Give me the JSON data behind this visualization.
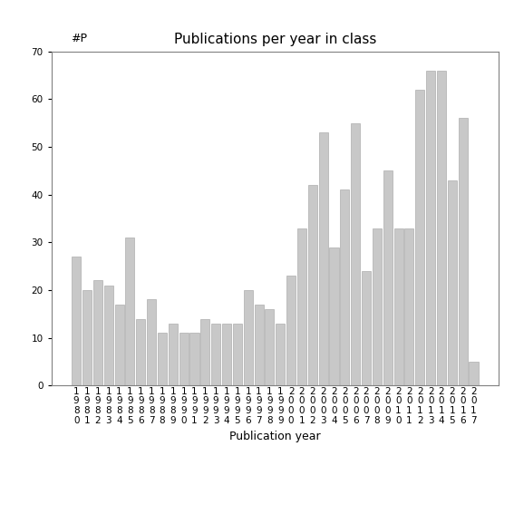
{
  "title": "Publications per year in class",
  "xlabel": "Publication year",
  "ylabel": "#P",
  "years": [
    1980,
    1981,
    1982,
    1983,
    1984,
    1985,
    1986,
    1987,
    1988,
    1989,
    1990,
    1991,
    1992,
    1993,
    1994,
    1995,
    1996,
    1997,
    1998,
    1999,
    2000,
    2001,
    2002,
    2003,
    2004,
    2005,
    2006,
    2007,
    2008,
    2009,
    2010,
    2011,
    2012,
    2013,
    2014,
    2015,
    2016,
    2017
  ],
  "values": [
    27,
    20,
    22,
    21,
    17,
    31,
    14,
    18,
    11,
    13,
    11,
    11,
    14,
    13,
    13,
    13,
    20,
    17,
    16,
    13,
    23,
    33,
    42,
    53,
    29,
    41,
    55,
    24,
    33,
    45,
    33,
    33,
    62,
    66,
    66,
    43,
    56,
    5
  ],
  "bar_color": "#c8c8c8",
  "bar_edgecolor": "#a0a0a0",
  "ylim": [
    0,
    70
  ],
  "yticks": [
    0,
    10,
    20,
    30,
    40,
    50,
    60,
    70
  ],
  "background_color": "#ffffff",
  "title_fontsize": 11,
  "axis_label_fontsize": 9,
  "tick_fontsize": 7.5
}
